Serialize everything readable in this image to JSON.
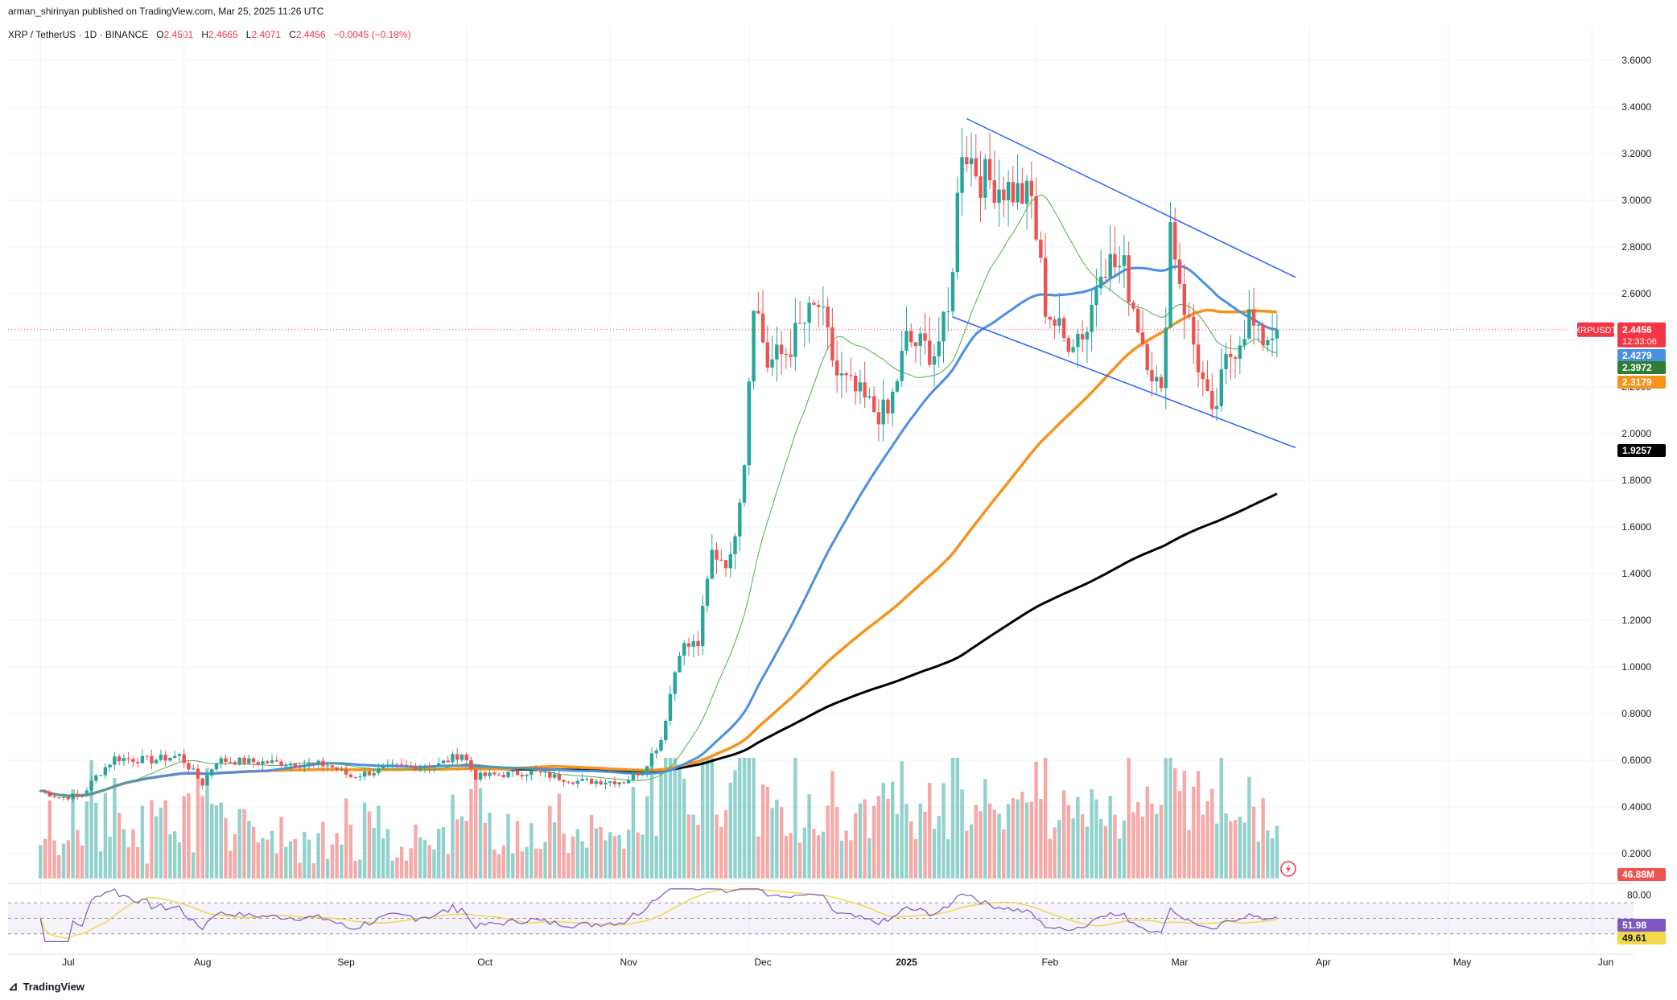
{
  "header": {
    "published_by": "arman_shirinyan published on TradingView.com, Mar 25, 2025 11:26 UTC"
  },
  "symbol_legend": {
    "symbol": "XRP / TetherUS · 1D · BINANCE",
    "open_label": "O",
    "open": "2.4501",
    "high_label": "H",
    "high": "2.4665",
    "low_label": "L",
    "low": "2.4071",
    "close_label": "C",
    "close": "2.4456",
    "change": "−0.0045 (−0.18%)"
  },
  "footer": {
    "brand": "TradingView",
    "brand_icon": "tradingview-logo-icon"
  },
  "colors": {
    "up": "#26a69a",
    "down": "#ef5350",
    "ma_fast": "#4caf50",
    "ma_mid": "#4a90e2",
    "ma_slow": "#f7931a",
    "ma_long": "#000000",
    "trendline": "#2962ff",
    "rsi": "#7e57c2",
    "rsi_ma": "#f0d94a"
  },
  "chart_data": {
    "type": "candlestick",
    "symbol": "XRPUSDT",
    "timeframe": "1D",
    "ylim": [
      0.1,
      3.7
    ],
    "y_ticks": [
      "3.6000",
      "3.4000",
      "3.2000",
      "3.0000",
      "2.8000",
      "2.6000",
      "2.4000",
      "2.2000",
      "2.0000",
      "1.8000",
      "1.6000",
      "1.4000",
      "1.2000",
      "1.0000",
      "0.8000",
      "0.6000",
      "0.4000",
      "0.2000"
    ],
    "x_ticks": [
      "Jul",
      "Aug",
      "Sep",
      "Oct",
      "Nov",
      "Dec",
      "2025",
      "Feb",
      "Mar",
      "Apr",
      "May",
      "Jun"
    ],
    "price_tags": [
      {
        "label": "XRPUSDT",
        "value": "2.4456",
        "sub": "12:33:06",
        "color": "#f23645"
      },
      {
        "value": "2.4279",
        "color": "#4a90e2"
      },
      {
        "value": "2.3972",
        "color": "#2e7d32"
      },
      {
        "value": "2.3179",
        "color": "#f7931a"
      },
      {
        "value": "1.9257",
        "color": "#000000"
      },
      {
        "value": "46.88M",
        "color": "#ef5350"
      }
    ],
    "anchors": [
      {
        "date": "2024-07-01",
        "close": 0.47
      },
      {
        "date": "2024-07-05",
        "close": 0.44
      },
      {
        "date": "2024-07-10",
        "close": 0.45
      },
      {
        "date": "2024-07-13",
        "close": 0.53
      },
      {
        "date": "2024-07-17",
        "close": 0.61
      },
      {
        "date": "2024-07-25",
        "close": 0.6
      },
      {
        "date": "2024-07-31",
        "close": 0.62
      },
      {
        "date": "2024-08-05",
        "close": 0.5
      },
      {
        "date": "2024-08-08",
        "close": 0.6
      },
      {
        "date": "2024-08-20",
        "close": 0.59
      },
      {
        "date": "2024-09-01",
        "close": 0.58
      },
      {
        "date": "2024-09-06",
        "close": 0.53
      },
      {
        "date": "2024-09-15",
        "close": 0.57
      },
      {
        "date": "2024-09-25",
        "close": 0.58
      },
      {
        "date": "2024-09-30",
        "close": 0.63
      },
      {
        "date": "2024-10-03",
        "close": 0.53
      },
      {
        "date": "2024-10-15",
        "close": 0.55
      },
      {
        "date": "2024-10-25",
        "close": 0.51
      },
      {
        "date": "2024-11-04",
        "close": 0.51
      },
      {
        "date": "2024-11-08",
        "close": 0.56
      },
      {
        "date": "2024-11-12",
        "close": 0.69
      },
      {
        "date": "2024-11-16",
        "close": 1.08
      },
      {
        "date": "2024-11-20",
        "close": 1.1
      },
      {
        "date": "2024-11-23",
        "close": 1.49
      },
      {
        "date": "2024-11-27",
        "close": 1.45
      },
      {
        "date": "2024-11-30",
        "close": 1.9
      },
      {
        "date": "2024-12-02",
        "close": 2.6
      },
      {
        "date": "2024-12-05",
        "close": 2.3
      },
      {
        "date": "2024-12-09",
        "close": 2.35
      },
      {
        "date": "2024-12-12",
        "close": 2.45
      },
      {
        "date": "2024-12-16",
        "close": 2.55
      },
      {
        "date": "2024-12-20",
        "close": 2.25
      },
      {
        "date": "2024-12-28",
        "close": 2.1
      },
      {
        "date": "2024-12-31",
        "close": 2.08
      },
      {
        "date": "2025-01-04",
        "close": 2.4
      },
      {
        "date": "2025-01-10",
        "close": 2.35
      },
      {
        "date": "2025-01-13",
        "close": 2.5
      },
      {
        "date": "2025-01-16",
        "close": 3.25
      },
      {
        "date": "2025-01-20",
        "close": 3.1
      },
      {
        "date": "2025-01-26",
        "close": 3.05
      },
      {
        "date": "2025-01-31",
        "close": 3.0
      },
      {
        "date": "2025-02-03",
        "close": 2.55
      },
      {
        "date": "2025-02-07",
        "close": 2.4
      },
      {
        "date": "2025-02-12",
        "close": 2.45
      },
      {
        "date": "2025-02-15",
        "close": 2.75
      },
      {
        "date": "2025-02-20",
        "close": 2.7
      },
      {
        "date": "2025-02-24",
        "close": 2.4
      },
      {
        "date": "2025-02-28",
        "close": 2.15
      },
      {
        "date": "2025-03-02",
        "close": 2.9
      },
      {
        "date": "2025-03-05",
        "close": 2.55
      },
      {
        "date": "2025-03-08",
        "close": 2.3
      },
      {
        "date": "2025-03-11",
        "close": 2.05
      },
      {
        "date": "2025-03-14",
        "close": 2.3
      },
      {
        "date": "2025-03-19",
        "close": 2.5
      },
      {
        "date": "2025-03-21",
        "close": 2.4
      },
      {
        "date": "2025-03-25",
        "close": 2.4456
      }
    ],
    "moving_averages": [
      {
        "name": "MA fast",
        "value": "2.3972"
      },
      {
        "name": "MA mid",
        "value": "2.4279"
      },
      {
        "name": "MA slow",
        "value": "2.3179"
      },
      {
        "name": "MA long",
        "value": "1.9257"
      }
    ],
    "volume": {
      "last": "46.88M"
    },
    "rsi": {
      "ticks": [
        "80.00"
      ],
      "value": "51.98",
      "ma": "49.61",
      "bands": [
        70,
        30
      ]
    },
    "trend_channel": [
      {
        "from": {
          "date": "2025-01-17",
          "price": 3.35
        },
        "to": {
          "date": "2025-03-29",
          "price": 2.67
        }
      },
      {
        "from": {
          "date": "2025-01-14",
          "price": 2.5
        },
        "to": {
          "date": "2025-03-29",
          "price": 1.94
        }
      }
    ]
  }
}
